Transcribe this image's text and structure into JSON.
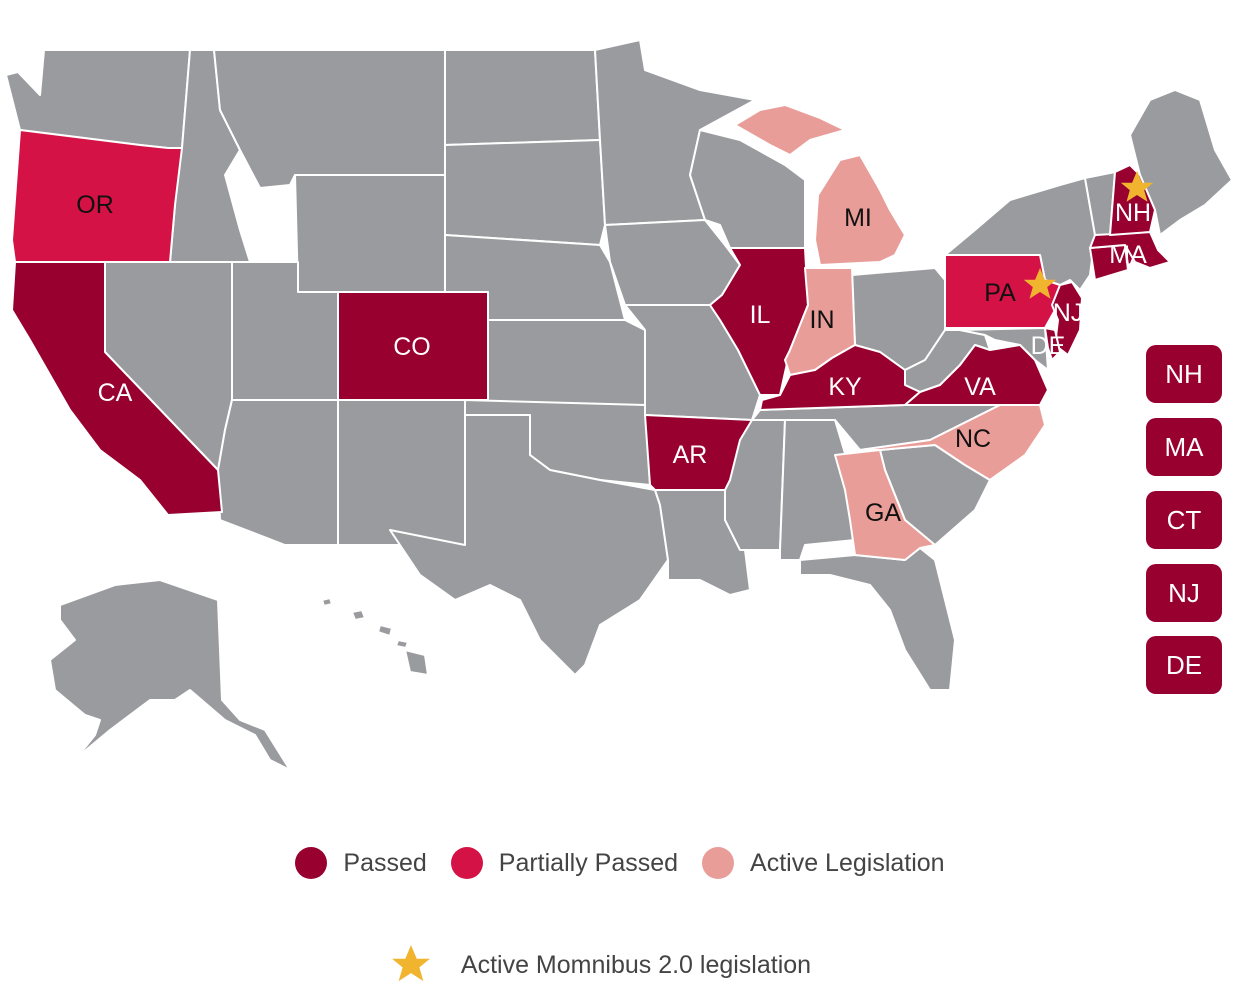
{
  "colors": {
    "passed": "#980030",
    "partially_passed": "#d41245",
    "active_legislation": "#e99d99",
    "no_legislation": "#9a9b9e",
    "star": "#f1b42f",
    "border": "#ffffff"
  },
  "map": {
    "states": [
      {
        "code": "OR",
        "status": "partially_passed"
      },
      {
        "code": "CA",
        "status": "passed"
      },
      {
        "code": "CO",
        "status": "passed"
      },
      {
        "code": "AR",
        "status": "passed"
      },
      {
        "code": "IL",
        "status": "passed"
      },
      {
        "code": "IN",
        "status": "active_legislation"
      },
      {
        "code": "MI",
        "status": "active_legislation"
      },
      {
        "code": "KY",
        "status": "passed"
      },
      {
        "code": "VA",
        "status": "passed"
      },
      {
        "code": "NC",
        "status": "active_legislation"
      },
      {
        "code": "GA",
        "status": "active_legislation"
      },
      {
        "code": "PA",
        "status": "partially_passed",
        "momnibus_2": true
      },
      {
        "code": "NH",
        "status": "passed",
        "momnibus_2": true
      },
      {
        "code": "MA",
        "status": "passed"
      },
      {
        "code": "CT",
        "status": "passed"
      },
      {
        "code": "NJ",
        "status": "passed"
      },
      {
        "code": "DE",
        "status": "passed"
      }
    ],
    "labels": {
      "or": "OR",
      "ca": "CA",
      "co": "CO",
      "ar": "AR",
      "il": "IL",
      "in": "IN",
      "mi": "MI",
      "ky": "KY",
      "va": "VA",
      "nc": "NC",
      "ga": "GA",
      "pa": "PA",
      "nh": "NH",
      "ma": "MA",
      "nj": "NJ",
      "de": "DE"
    },
    "small_state_boxes": [
      "NH",
      "MA",
      "CT",
      "NJ",
      "DE"
    ]
  },
  "legend": {
    "passed": "Passed",
    "partially_passed": "Partially Passed",
    "active_legislation": "Active Legislation",
    "momnibus": "Active Momnibus 2.0 legislation"
  }
}
